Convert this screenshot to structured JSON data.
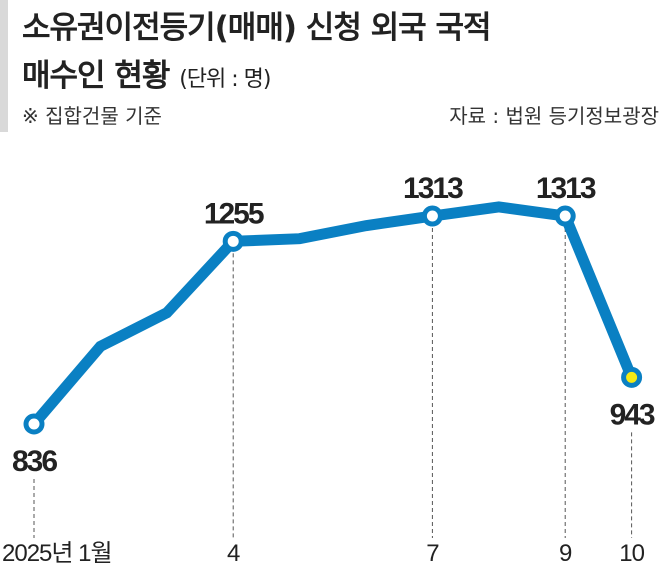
{
  "title_line1": "소유권이전등기(매매) 신청 외국 국적",
  "title_line2": "매수인 현황",
  "unit": "(단위 : 명)",
  "note": "※ 집합건물 기준",
  "source": "자료 : 법원 등기정보광장",
  "chart_data": {
    "type": "line",
    "x": [
      1,
      2,
      3,
      4,
      5,
      6,
      7,
      8,
      9,
      10
    ],
    "values": [
      836,
      1014,
      1091,
      1255,
      1261,
      1291,
      1313,
      1334,
      1313,
      943
    ],
    "labeled_points": [
      {
        "month": 1,
        "label": "836"
      },
      {
        "month": 4,
        "label": "1255"
      },
      {
        "month": 7,
        "label": "1313"
      },
      {
        "month": 9,
        "label": "1313"
      },
      {
        "month": 10,
        "label": "943"
      }
    ],
    "x_tick_labels": [
      {
        "month": 1,
        "label": "2025년 1월"
      },
      {
        "month": 4,
        "label": "4"
      },
      {
        "month": 7,
        "label": "7"
      },
      {
        "month": 9,
        "label": "9"
      },
      {
        "month": 10,
        "label": "10"
      }
    ],
    "line_color": "#0a80c3",
    "highlight_color": "#f5ea14",
    "grid": false
  }
}
